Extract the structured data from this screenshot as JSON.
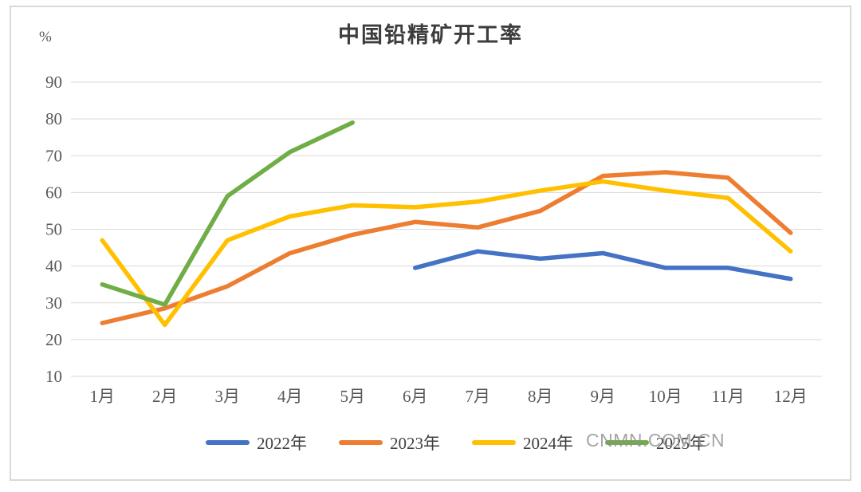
{
  "chart": {
    "title": "中国铅精矿开工率",
    "y_unit": "%",
    "watermark": "CNMN.COM.CN"
  },
  "chart_data": {
    "type": "line",
    "title": "中国铅精矿开工率",
    "ylabel": "%",
    "xlabel": "",
    "grid": true,
    "legend_position": "bottom",
    "ylim": [
      10,
      90
    ],
    "yticks": [
      90,
      80,
      70,
      60,
      50,
      40,
      30,
      20,
      10
    ],
    "categories": [
      "1月",
      "2月",
      "3月",
      "4月",
      "5月",
      "6月",
      "7月",
      "8月",
      "9月",
      "10月",
      "11月",
      "12月"
    ],
    "series": [
      {
        "name": "2022年",
        "color": "#4472C4",
        "values": [
          null,
          null,
          null,
          null,
          null,
          39.5,
          44,
          42,
          43.5,
          39.5,
          39.5,
          36.5
        ]
      },
      {
        "name": "2023年",
        "color": "#ED7D31",
        "values": [
          24.5,
          28.5,
          34.5,
          43.5,
          48.5,
          52,
          50.5,
          55,
          64.5,
          65.5,
          64,
          49
        ]
      },
      {
        "name": "2024年",
        "color": "#FFC000",
        "values": [
          47,
          24,
          47,
          53.5,
          56.5,
          56,
          57.5,
          60.5,
          63,
          60.5,
          58.5,
          44
        ]
      },
      {
        "name": "2025年",
        "color": "#70AD47",
        "values": [
          35,
          29.5,
          59,
          71,
          79,
          null,
          null,
          null,
          null,
          null,
          null,
          null
        ]
      }
    ]
  }
}
